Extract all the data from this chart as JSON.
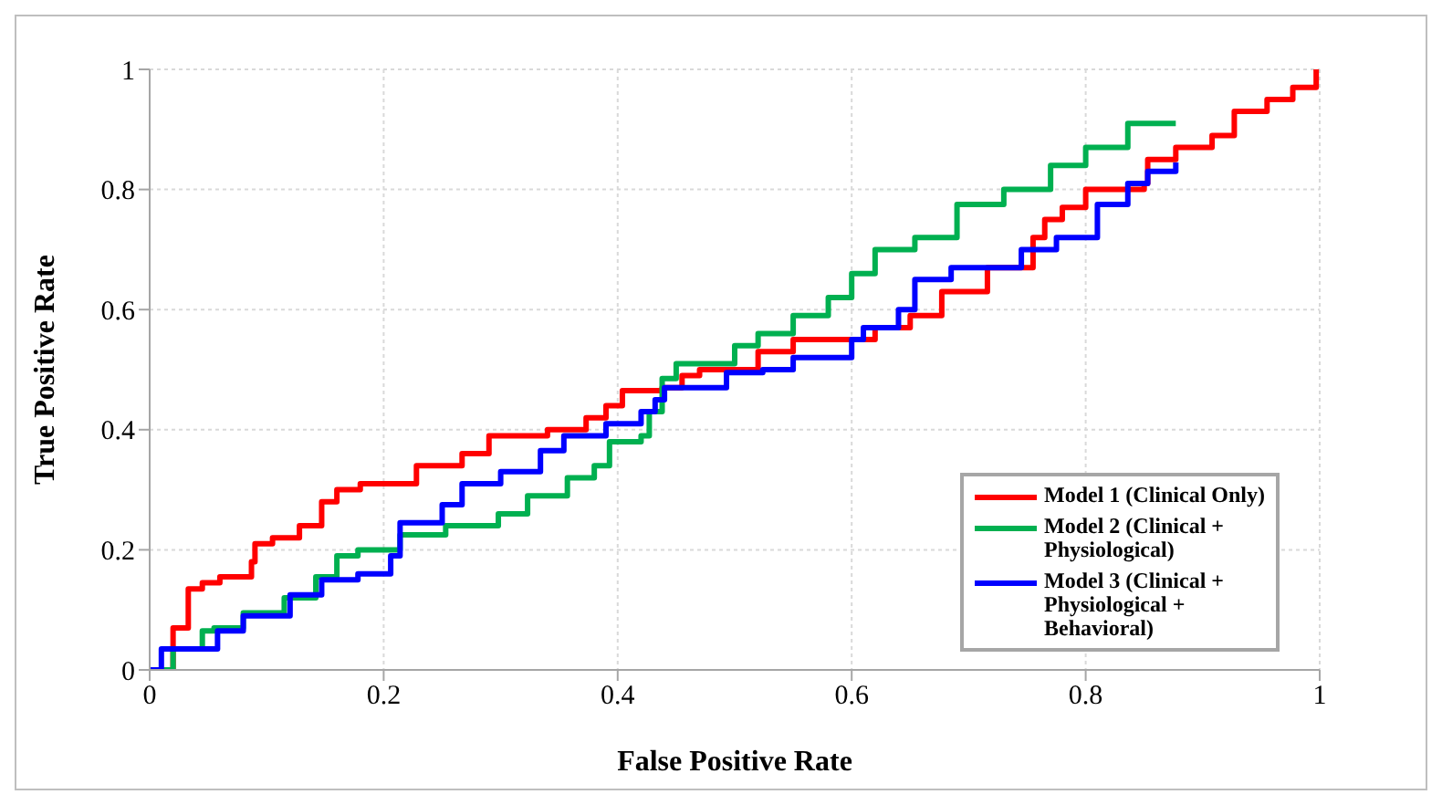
{
  "chart_data": {
    "type": "step",
    "xlabel": "False Positive Rate",
    "ylabel": "True Positive Rate",
    "xlim": [
      0,
      1
    ],
    "ylim": [
      0,
      1
    ],
    "xticks": [
      0,
      0.2,
      0.4,
      0.6,
      0.8,
      1
    ],
    "yticks": [
      0,
      0.2,
      0.4,
      0.6,
      0.8,
      1
    ],
    "grid": true,
    "legend": "bottom right",
    "line_style": "solid",
    "marker": "none",
    "series": [
      {
        "name": "Model 1 (Clinical Only)",
        "color": "#ff0000",
        "x": [
          0,
          0.02,
          0.033,
          0.045,
          0.06,
          0.087,
          0.09,
          0.105,
          0.128,
          0.147,
          0.16,
          0.18,
          0.228,
          0.267,
          0.29,
          0.34,
          0.373,
          0.39,
          0.404,
          0.438,
          0.455,
          0.47,
          0.52,
          0.55,
          0.62,
          0.65,
          0.677,
          0.69,
          0.716,
          0.755,
          0.765,
          0.78,
          0.8,
          0.85,
          0.853,
          0.877,
          0.908,
          0.927,
          0.955,
          0.977,
          0.997
        ],
        "values": [
          0,
          0.07,
          0.135,
          0.145,
          0.155,
          0.18,
          0.21,
          0.22,
          0.24,
          0.28,
          0.3,
          0.31,
          0.34,
          0.36,
          0.39,
          0.4,
          0.42,
          0.44,
          0.465,
          0.47,
          0.49,
          0.5,
          0.53,
          0.55,
          0.57,
          0.59,
          0.63,
          0.63,
          0.67,
          0.72,
          0.75,
          0.77,
          0.8,
          0.81,
          0.85,
          0.87,
          0.89,
          0.93,
          0.95,
          0.97,
          1
        ]
      },
      {
        "name": "Model 2 (Clinical + Physiological)",
        "color": "#00b050",
        "x": [
          0,
          0.02,
          0.045,
          0.055,
          0.08,
          0.115,
          0.142,
          0.16,
          0.178,
          0.214,
          0.253,
          0.298,
          0.323,
          0.357,
          0.38,
          0.393,
          0.42,
          0.427,
          0.438,
          0.45,
          0.5,
          0.52,
          0.55,
          0.58,
          0.6,
          0.62,
          0.654,
          0.69,
          0.73,
          0.77,
          0.8,
          0.836,
          0.877
        ],
        "values": [
          0,
          0.035,
          0.065,
          0.07,
          0.095,
          0.12,
          0.155,
          0.19,
          0.2,
          0.225,
          0.24,
          0.26,
          0.29,
          0.32,
          0.34,
          0.38,
          0.39,
          0.43,
          0.485,
          0.51,
          0.54,
          0.56,
          0.59,
          0.62,
          0.66,
          0.7,
          0.72,
          0.775,
          0.8,
          0.84,
          0.87,
          0.91,
          0.91
        ]
      },
      {
        "name": "Model 3 (Clinical + Physiological + Behavioral)",
        "color": "#0000ff",
        "x": [
          0,
          0.01,
          0.048,
          0.058,
          0.08,
          0.12,
          0.147,
          0.178,
          0.206,
          0.214,
          0.25,
          0.267,
          0.3,
          0.334,
          0.354,
          0.39,
          0.42,
          0.432,
          0.44,
          0.493,
          0.524,
          0.55,
          0.6,
          0.61,
          0.64,
          0.654,
          0.685,
          0.745,
          0.775,
          0.81,
          0.836,
          0.853,
          0.877
        ],
        "values": [
          0,
          0.035,
          0.035,
          0.065,
          0.09,
          0.125,
          0.15,
          0.16,
          0.19,
          0.245,
          0.275,
          0.31,
          0.33,
          0.365,
          0.39,
          0.41,
          0.43,
          0.45,
          0.47,
          0.495,
          0.5,
          0.52,
          0.55,
          0.57,
          0.6,
          0.65,
          0.67,
          0.7,
          0.72,
          0.775,
          0.81,
          0.83,
          0.845
        ]
      }
    ]
  }
}
